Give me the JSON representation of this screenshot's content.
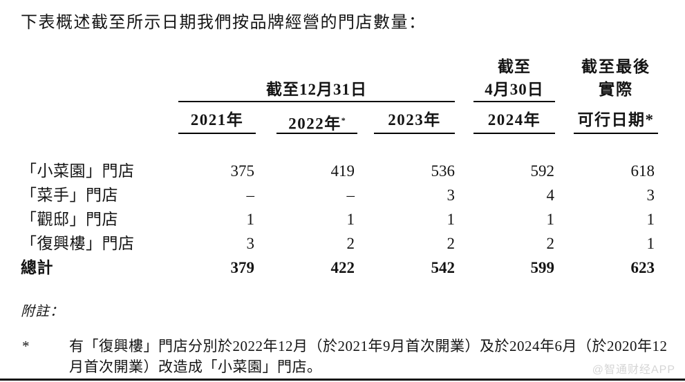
{
  "page": {
    "title": "下表概述截至所示日期我們按品牌經營的門店數量：",
    "watermark": "@智通财经APP"
  },
  "table": {
    "group_header": "截至12月31日",
    "asof_apr30": {
      "line1": "截至",
      "line2": "4月30日"
    },
    "asof_latest": {
      "line1": "截至最後",
      "line2": "實際"
    },
    "columns": [
      {
        "label": "2021年",
        "sup": ""
      },
      {
        "label": "2022年",
        "sup": "*"
      },
      {
        "label": "2023年",
        "sup": ""
      },
      {
        "label": "2024年",
        "sup": ""
      },
      {
        "label": "可行日期*",
        "sup": ""
      }
    ],
    "rows": [
      {
        "label": "「小菜園」門店",
        "values": [
          "375",
          "419",
          "536",
          "592",
          "618"
        ]
      },
      {
        "label": "「菜手」門店",
        "values": [
          "–",
          "–",
          "3",
          "4",
          "3"
        ]
      },
      {
        "label": "「觀邸」門店",
        "values": [
          "1",
          "1",
          "1",
          "1",
          "1"
        ]
      },
      {
        "label": "「復興樓」門店",
        "values": [
          "3",
          "2",
          "2",
          "2",
          "1"
        ]
      },
      {
        "label": "總計",
        "values": [
          "379",
          "422",
          "542",
          "599",
          "623"
        ]
      }
    ]
  },
  "notes": {
    "heading": "附註：",
    "footnote": {
      "marker": "*",
      "lines": [
        "有「復興樓」門店分別於2022年12月（於2021年9月首次開業）及於2024年6月（於2020年12",
        "月首次開業）改造成「小菜園」門店。"
      ]
    }
  }
}
